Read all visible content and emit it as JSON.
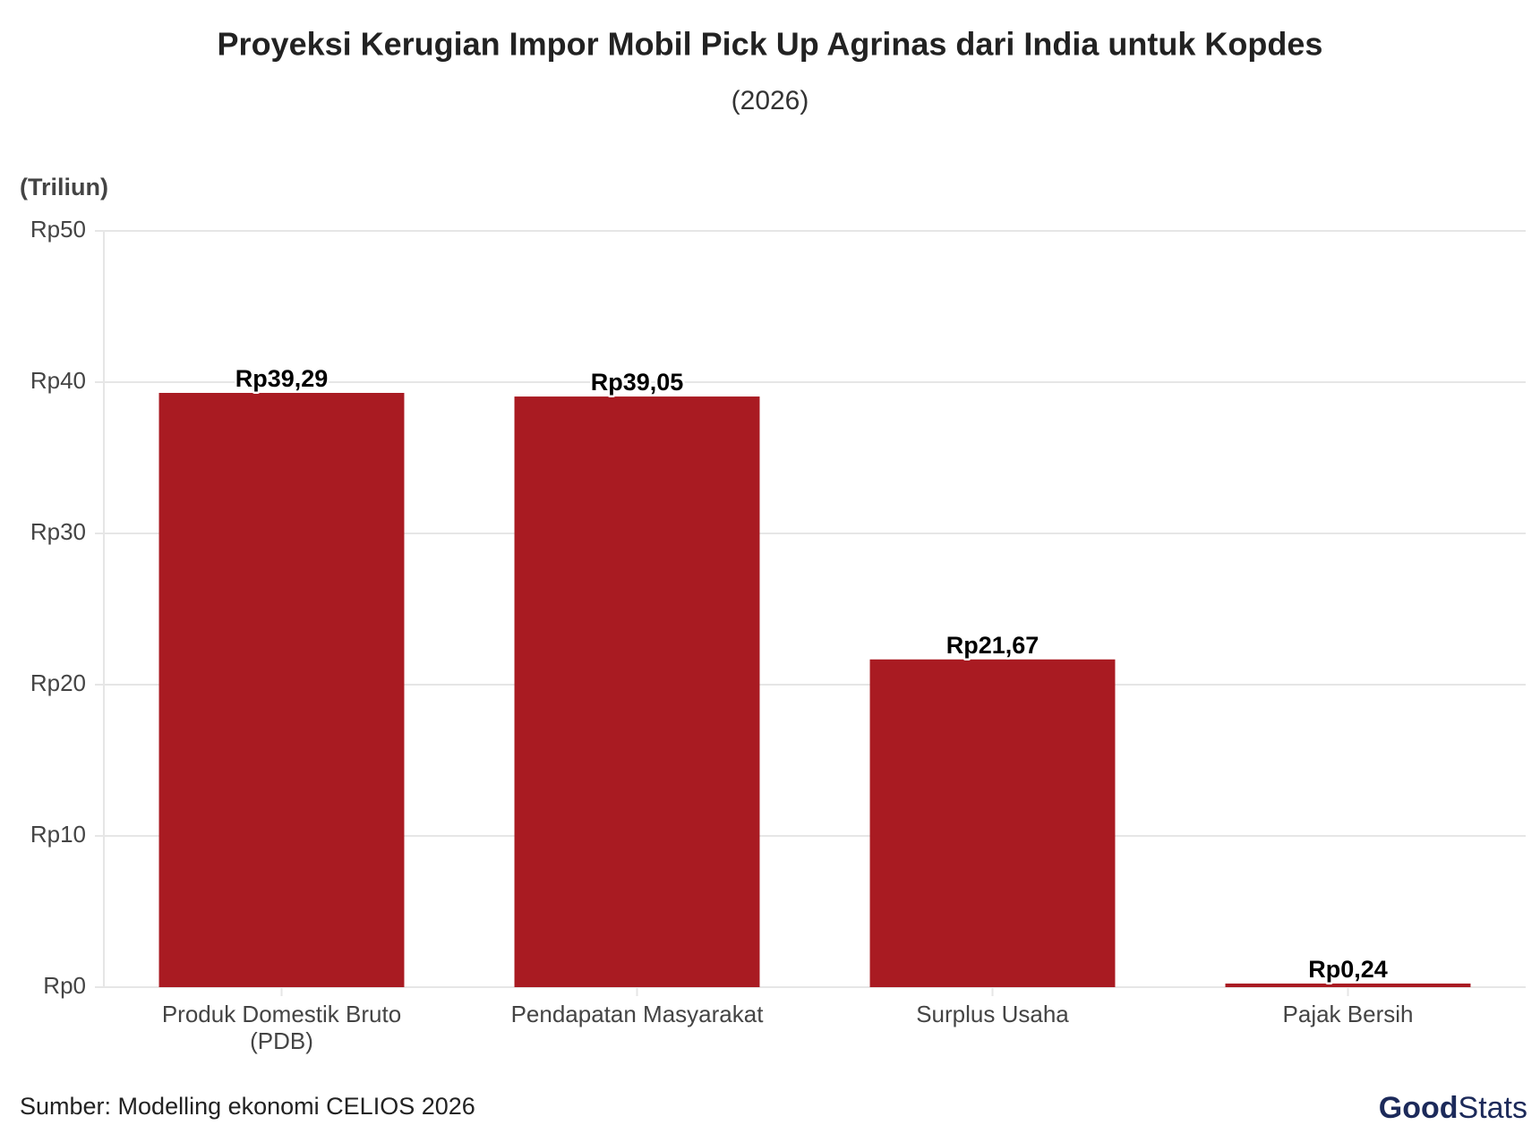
{
  "chart_data": {
    "type": "bar",
    "title": "Proyeksi Kerugian Impor Mobil Pick Up Agrinas dari India untuk Kopdes",
    "subtitle": "(2026)",
    "y_label": "(Triliun)",
    "categories": [
      "Produk Domestik Bruto\n(PDB)",
      "Pendapatan Masyarakat",
      "Surplus Usaha",
      "Pajak Bersih"
    ],
    "values": [
      39.29,
      39.05,
      21.67,
      0.24
    ],
    "value_labels": [
      "Rp39,29",
      "Rp39,05",
      "Rp21,67",
      "Rp0,24"
    ],
    "color": "#a91b22",
    "ylim": [
      0,
      50
    ],
    "yticks": [
      {
        "value": 0,
        "label": "Rp0"
      },
      {
        "value": 10,
        "label": "Rp10"
      },
      {
        "value": 20,
        "label": "Rp20"
      },
      {
        "value": 30,
        "label": "Rp30"
      },
      {
        "value": 40,
        "label": "Rp40"
      },
      {
        "value": 50,
        "label": "Rp50"
      }
    ],
    "grid": true,
    "source": "Sumber: Modelling ekonomi CELIOS 2026",
    "logo": {
      "bold": "Good",
      "light": "Stats"
    }
  }
}
